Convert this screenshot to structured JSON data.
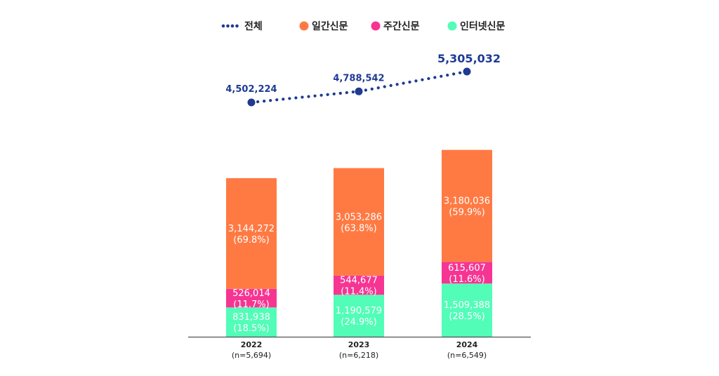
{
  "chart_data": {
    "type": "bar",
    "stacked": true,
    "categories": [
      "2022",
      "2023",
      "2024"
    ],
    "category_sublabels": [
      "(n=5,694)",
      "(n=6,218)",
      "(n=6,549)"
    ],
    "series": [
      {
        "name": "인터넷신문",
        "color": "#52fdb8",
        "values": [
          831938,
          1190579,
          1509388
        ],
        "value_labels": [
          "831,938",
          "1,190,579",
          "1,509,388"
        ],
        "pct_labels": [
          "(18.5%)",
          "(24.9%)",
          "(28.5%)"
        ]
      },
      {
        "name": "주간신문",
        "color": "#f63593",
        "values": [
          526014,
          544677,
          615607
        ],
        "value_labels": [
          "526,014",
          "544,677",
          "615,607"
        ],
        "pct_labels": [
          "(11.7%)",
          "(11.4%)",
          "(11.6%)"
        ]
      },
      {
        "name": "일간신문",
        "color": "#ff7a43",
        "values": [
          3144272,
          3053286,
          3180036
        ],
        "value_labels": [
          "3,144,272",
          "3,053,286",
          "3,180,036"
        ],
        "pct_labels": [
          "(69.8%)",
          "(63.8%)",
          "(59.9%)"
        ]
      }
    ],
    "total": {
      "name": "전체",
      "color": "#1f3a93",
      "values": [
        4502224,
        4788542,
        5305032
      ],
      "value_labels": [
        "4,502,224",
        "4,788,542",
        "5,305,032"
      ]
    },
    "legend_order": [
      "전체",
      "일간신문",
      "주간신문",
      "인터넷신문"
    ],
    "legend_colors": [
      "#1f3a93",
      "#ff7a43",
      "#f63593",
      "#52fdb8"
    ],
    "title": "",
    "xlabel": "",
    "ylabel": "",
    "ylim": [
      0,
      5800000
    ],
    "total_ylim": [
      3200000,
      5800000
    ],
    "grid": false,
    "legend_position": "top-center"
  }
}
